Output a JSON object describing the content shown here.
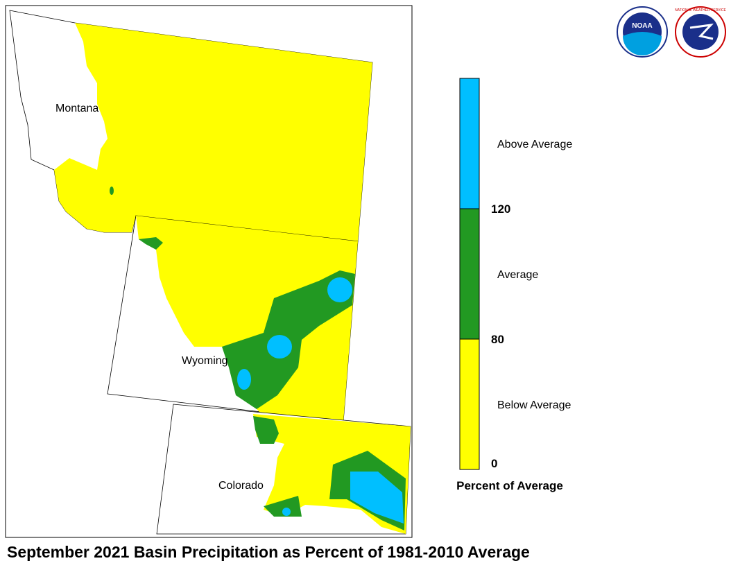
{
  "map": {
    "title": "September 2021 Basin Precipitation as Percent of 1981-2010 Average",
    "states": [
      "Montana",
      "Wyoming",
      "Colorado"
    ],
    "logos": {
      "noaa": "NOAA",
      "nws": "NATIONAL WEATHER SERVICE"
    }
  },
  "legend": {
    "title": "Percent of Average",
    "categories": [
      {
        "label": "Above Average",
        "color": "#00bfff"
      },
      {
        "label": "Average",
        "color": "#229922"
      },
      {
        "label": "Below Average",
        "color": "#ffff00"
      }
    ],
    "boundaries": [
      120,
      80,
      0
    ]
  }
}
